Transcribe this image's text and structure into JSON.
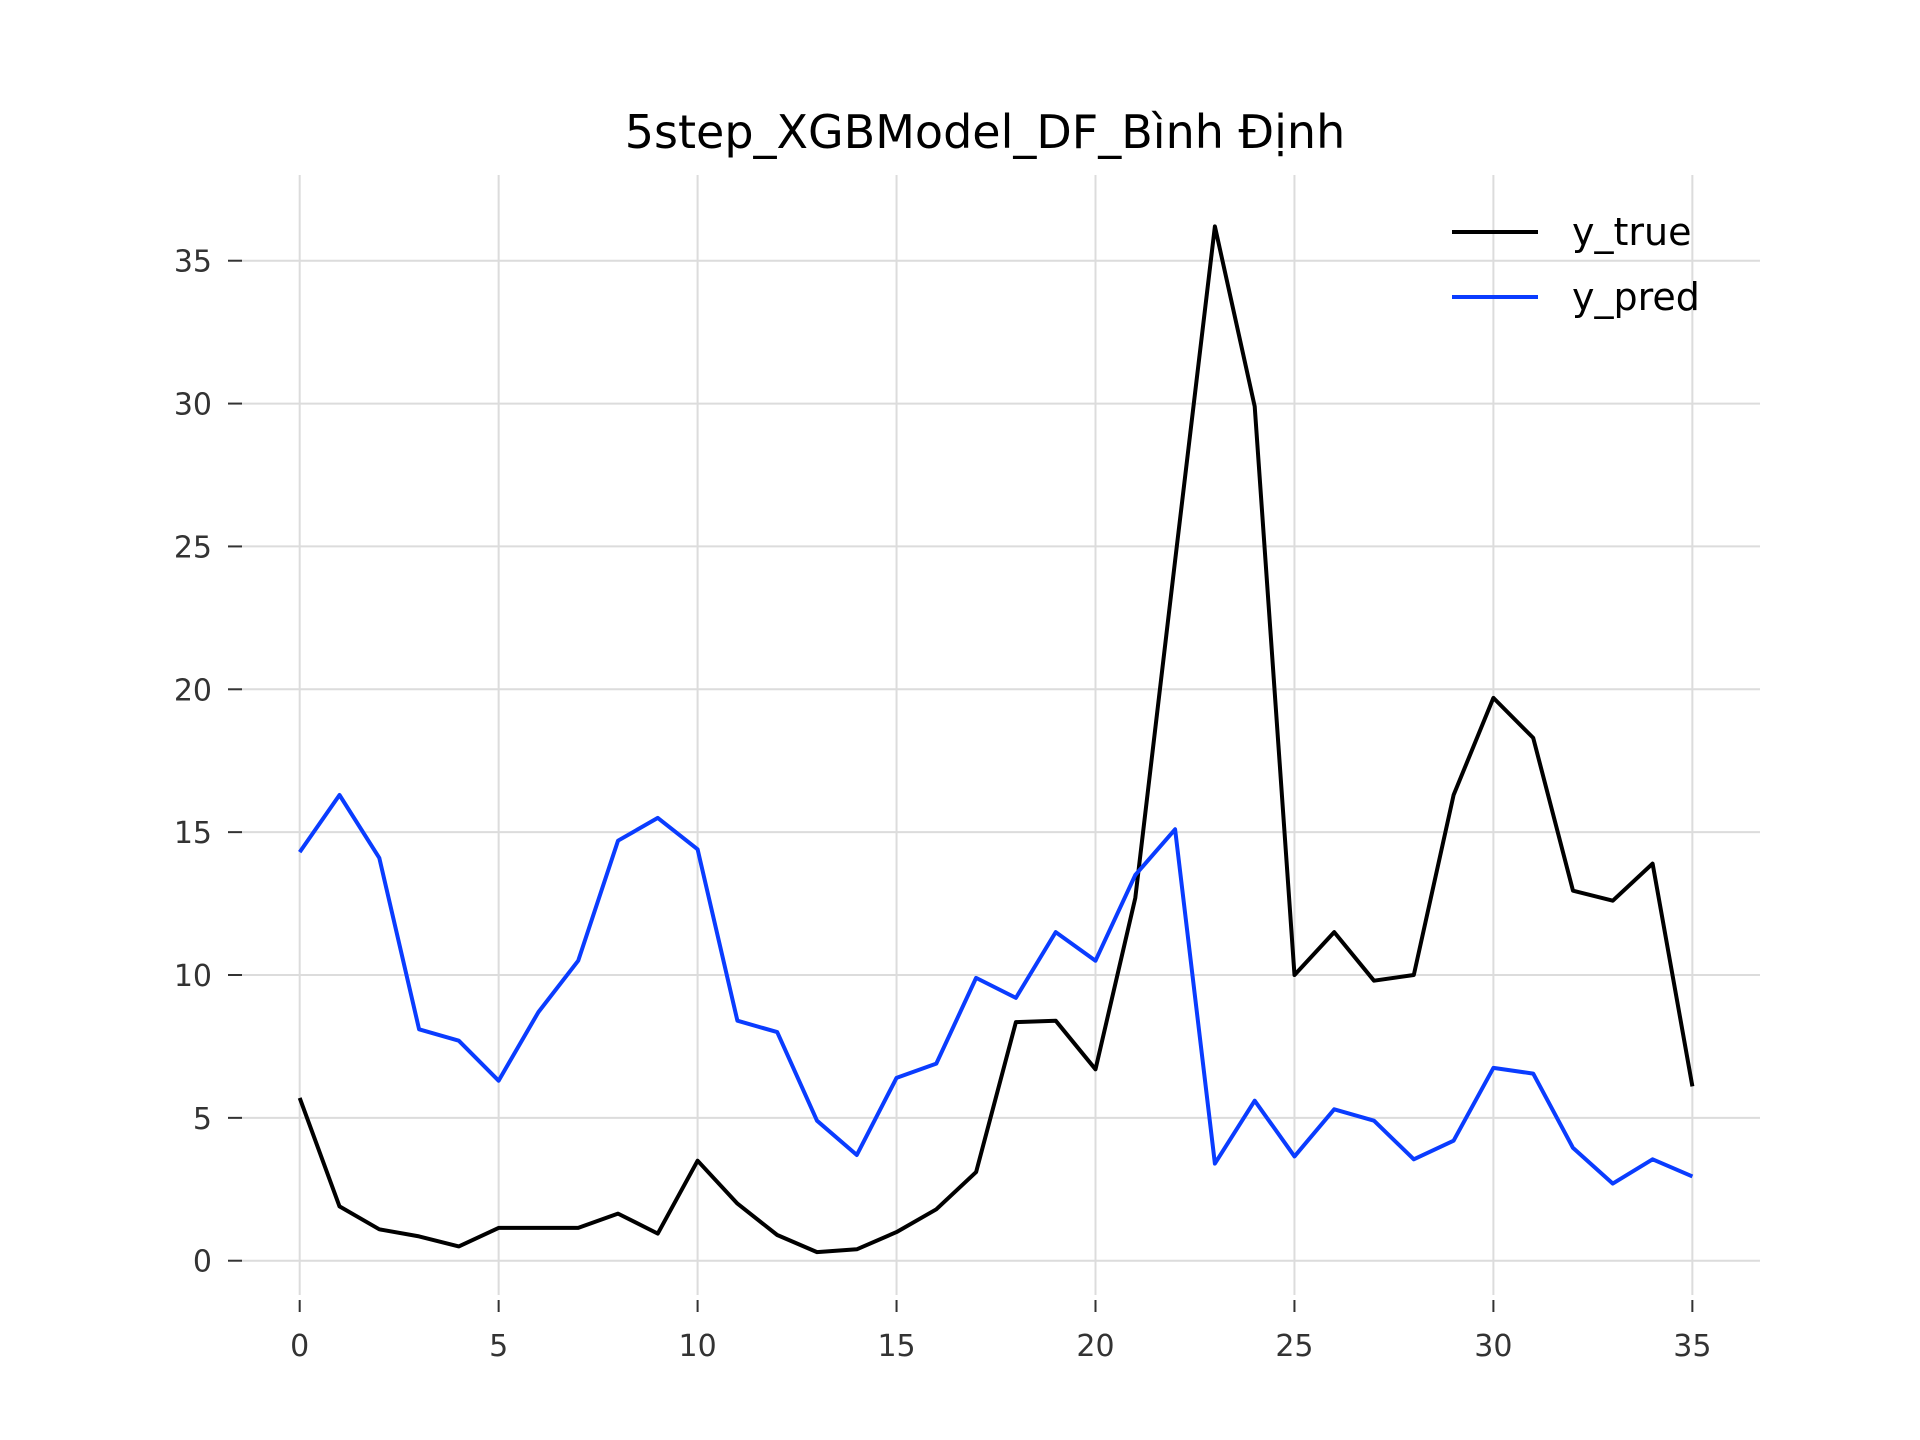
{
  "chart_data": {
    "type": "line",
    "title": "5step_XGBModel_DF_Bình Định",
    "xlabel": "",
    "ylabel": "",
    "xlim": [
      -1.5,
      36.7
    ],
    "ylim": [
      -1.2,
      38.0
    ],
    "xticks": [
      0,
      5,
      10,
      15,
      20,
      25,
      30,
      35
    ],
    "yticks": [
      0,
      5,
      10,
      15,
      20,
      25,
      30,
      35
    ],
    "grid": true,
    "legend_position": "top-right",
    "x": [
      0,
      1,
      2,
      3,
      4,
      5,
      6,
      7,
      8,
      9,
      10,
      11,
      12,
      13,
      14,
      15,
      16,
      17,
      18,
      19,
      20,
      21,
      22,
      23,
      24,
      25,
      26,
      27,
      28,
      29,
      30,
      31,
      32,
      33,
      34,
      35
    ],
    "series": [
      {
        "name": "y_true",
        "color": "#000000",
        "values": [
          5.7,
          1.9,
          1.1,
          0.85,
          0.5,
          1.15,
          1.15,
          1.15,
          1.65,
          0.95,
          3.5,
          2.0,
          0.9,
          0.3,
          0.4,
          1.0,
          1.8,
          3.1,
          8.35,
          8.4,
          6.7,
          12.7,
          24.5,
          36.2,
          29.9,
          10.0,
          11.5,
          9.8,
          10.0,
          16.3,
          19.7,
          18.3,
          12.95,
          12.6,
          13.9,
          6.1
        ]
      },
      {
        "name": "y_pred",
        "color": "#0a3cff",
        "values": [
          14.3,
          16.3,
          14.1,
          8.1,
          7.7,
          6.3,
          8.7,
          10.5,
          14.7,
          15.5,
          14.4,
          8.4,
          8.0,
          4.9,
          3.7,
          6.4,
          6.9,
          9.9,
          9.2,
          11.5,
          10.5,
          13.5,
          15.1,
          3.4,
          5.6,
          3.65,
          5.3,
          4.9,
          3.55,
          4.2,
          6.75,
          6.55,
          3.95,
          2.7,
          3.55,
          2.95
        ]
      }
    ]
  }
}
